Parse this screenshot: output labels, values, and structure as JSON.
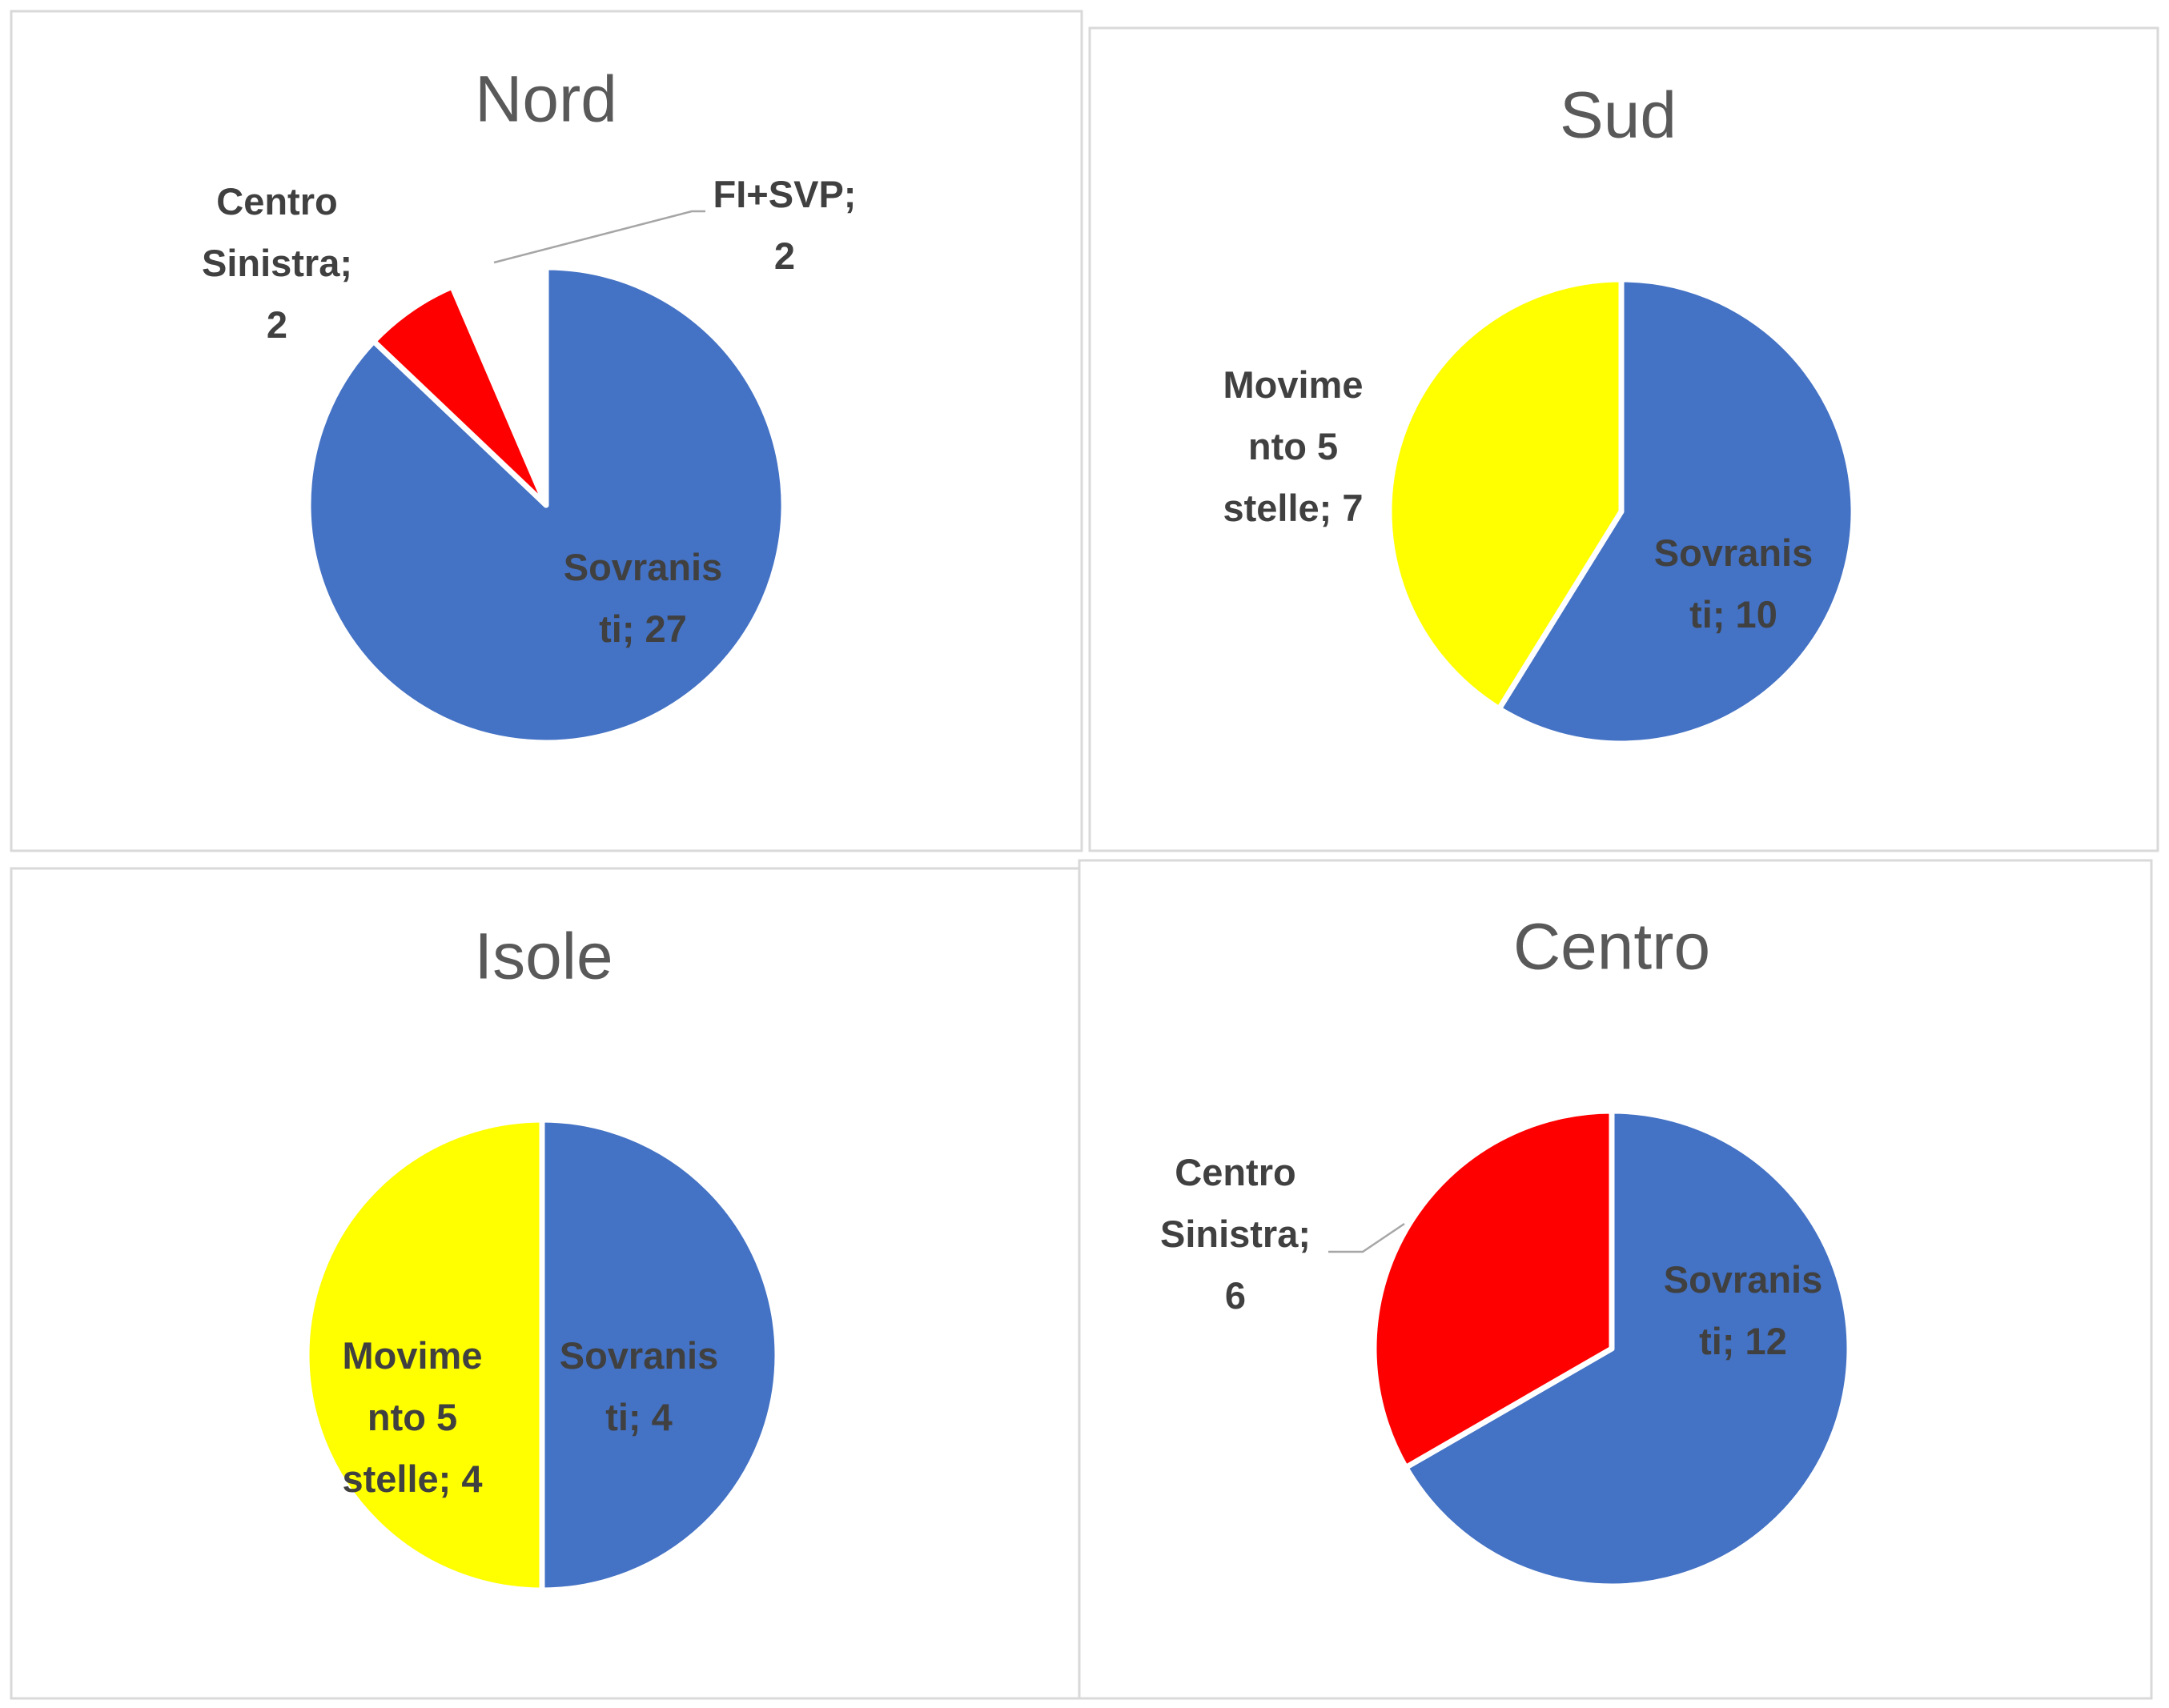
{
  "chart_data": [
    {
      "type": "pie",
      "title": "Nord",
      "values": [
        27,
        2,
        2
      ],
      "value_labels": [
        [
          "Sovranis",
          "ti; 27"
        ],
        [
          "Centro",
          "Sinistra;",
          "2"
        ],
        [
          "FI+SVP;",
          "2"
        ]
      ],
      "colors": [
        "#4472c4",
        "#ff0000",
        "#ffffff"
      ]
    },
    {
      "type": "pie",
      "title": "Sud",
      "values": [
        10,
        7
      ],
      "value_labels": [
        [
          "Sovranis",
          "ti; 10"
        ],
        [
          "Movime",
          "nto 5",
          "stelle; 7"
        ]
      ],
      "colors": [
        "#4472c4",
        "#ffff00"
      ]
    },
    {
      "type": "pie",
      "title": "Isole",
      "values": [
        4,
        4
      ],
      "value_labels": [
        [
          "Sovranis",
          "ti; 4"
        ],
        [
          "Movime",
          "nto 5",
          "stelle; 4"
        ]
      ],
      "colors": [
        "#4472c4",
        "#ffff00"
      ]
    },
    {
      "type": "pie",
      "title": "Centro",
      "values": [
        12,
        6
      ],
      "value_labels": [
        [
          "Sovranis",
          "ti; 12"
        ],
        [
          "Centro",
          "Sinistra;",
          "6"
        ]
      ],
      "colors": [
        "#4472c4",
        "#ff0000"
      ]
    }
  ]
}
